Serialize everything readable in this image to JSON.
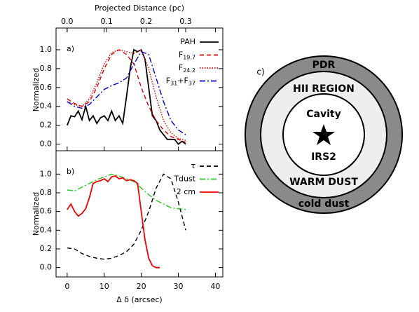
{
  "chart_data": [
    {
      "type": "line",
      "panel_label": "a)",
      "ylabel": "Normalized",
      "x2label": "Projected Distance (pc)",
      "x2lim": [
        -0.028,
        0.394
      ],
      "x2ticks": [
        {
          "value": 0,
          "label": "0.0"
        },
        0.1,
        0.2,
        0.3
      ],
      "xlim": [
        -3,
        42
      ],
      "ylim": [
        -0.07,
        1.23
      ],
      "yticks": [
        {
          "value": 0,
          "label": "0.0"
        },
        0.2,
        0.4,
        0.6,
        0.8,
        {
          "value": 1,
          "label": "1.0"
        }
      ],
      "series": [
        {
          "name": "PAH",
          "color": "#000000",
          "dash": "solid",
          "x": [
            0,
            1,
            2,
            3,
            4,
            5,
            6,
            7,
            8,
            9,
            10,
            11,
            12,
            13,
            14,
            15,
            16,
            17,
            18,
            19,
            20,
            21,
            22,
            23,
            24,
            25,
            26,
            27,
            28,
            29,
            30,
            31,
            32
          ],
          "values": [
            0.2,
            0.3,
            0.29,
            0.35,
            0.26,
            0.4,
            0.25,
            0.3,
            0.22,
            0.28,
            0.3,
            0.25,
            0.35,
            0.25,
            0.3,
            0.22,
            0.5,
            0.8,
            1.0,
            0.98,
            1.0,
            0.9,
            0.6,
            0.3,
            0.25,
            0.15,
            0.1,
            0.05,
            0.05,
            0.05,
            0.0,
            0.03,
            0.0
          ]
        },
        {
          "name": "F19.7",
          "color": "#e00000",
          "dash": "dashed",
          "x": [
            0,
            2,
            4,
            6,
            8,
            10,
            12,
            14,
            16,
            18,
            20,
            22,
            24,
            26,
            28,
            30,
            32
          ],
          "values": [
            0.48,
            0.43,
            0.4,
            0.45,
            0.6,
            0.8,
            0.95,
            1.0,
            0.95,
            0.85,
            0.6,
            0.4,
            0.25,
            0.15,
            0.08,
            0.05,
            0.02
          ]
        },
        {
          "name": "F24.2",
          "color": "#e00000",
          "dash": "dotted",
          "x": [
            0,
            2,
            4,
            6,
            8,
            10,
            12,
            14,
            16,
            18,
            20,
            22,
            24,
            26,
            28,
            30,
            32
          ],
          "values": [
            0.45,
            0.42,
            0.4,
            0.48,
            0.65,
            0.85,
            0.97,
            1.0,
            0.98,
            0.96,
            1.0,
            0.8,
            0.5,
            0.25,
            0.12,
            0.06,
            0.04
          ]
        },
        {
          "name": "F31+F37",
          "color": "#0000cc",
          "dash": "dashdot",
          "x": [
            0,
            2,
            4,
            6,
            8,
            10,
            12,
            14,
            16,
            18,
            20,
            22,
            24,
            26,
            28,
            30,
            32
          ],
          "values": [
            0.45,
            0.4,
            0.38,
            0.42,
            0.5,
            0.58,
            0.62,
            0.65,
            0.7,
            0.85,
            0.98,
            0.95,
            0.7,
            0.45,
            0.25,
            0.15,
            0.1
          ]
        }
      ]
    },
    {
      "type": "line",
      "panel_label": "b)",
      "ylabel": "Normalized",
      "xlabel": "Δ δ (arcsec)",
      "xlim": [
        -3,
        42
      ],
      "xticks": [
        0,
        10,
        20,
        30,
        40
      ],
      "ylim": [
        -0.1,
        1.25
      ],
      "yticks": [
        {
          "value": 0,
          "label": "0.0"
        },
        0.2,
        0.4,
        0.6,
        0.8,
        {
          "value": 1,
          "label": "1.0"
        }
      ],
      "series": [
        {
          "name": "τ",
          "color": "#000000",
          "dash": "dashed",
          "x": [
            0,
            2,
            4,
            6,
            8,
            10,
            12,
            14,
            16,
            18,
            20,
            22,
            24,
            26,
            28,
            30,
            32
          ],
          "values": [
            0.21,
            0.2,
            0.15,
            0.12,
            0.1,
            0.09,
            0.1,
            0.13,
            0.17,
            0.25,
            0.4,
            0.6,
            0.85,
            1.0,
            0.95,
            0.7,
            0.4
          ]
        },
        {
          "name": "Tdust",
          "color": "#22cc22",
          "dash": "dashdot",
          "x": [
            0,
            2,
            4,
            6,
            8,
            10,
            12,
            14,
            16,
            18,
            20,
            22,
            24,
            26,
            28,
            30,
            32
          ],
          "values": [
            0.83,
            0.82,
            0.86,
            0.9,
            0.94,
            0.97,
            1.0,
            0.98,
            0.95,
            0.92,
            0.85,
            0.78,
            0.72,
            0.68,
            0.64,
            0.63,
            0.62
          ]
        },
        {
          "name": "2 cm",
          "color": "#ee0000",
          "dash": "solid",
          "x": [
            0,
            1,
            2,
            3,
            4,
            5,
            6,
            7,
            8,
            9,
            10,
            11,
            12,
            13,
            14,
            15,
            16,
            17,
            18,
            19,
            20,
            21,
            22,
            23,
            24,
            25
          ],
          "values": [
            0.62,
            0.68,
            0.6,
            0.55,
            0.58,
            0.63,
            0.75,
            0.9,
            0.92,
            0.93,
            0.95,
            0.92,
            0.97,
            0.98,
            0.95,
            0.96,
            0.93,
            0.94,
            0.93,
            0.9,
            0.6,
            0.3,
            0.1,
            0.02,
            0.0,
            0.0
          ]
        }
      ]
    }
  ],
  "diagram": {
    "panel_label": "c)",
    "pdr": "PDR",
    "hii_region": "HII REGION",
    "cavity": "Cavity",
    "source": "IRS2",
    "warm_dust": "WARM DUST",
    "cold_dust": "cold dust"
  }
}
